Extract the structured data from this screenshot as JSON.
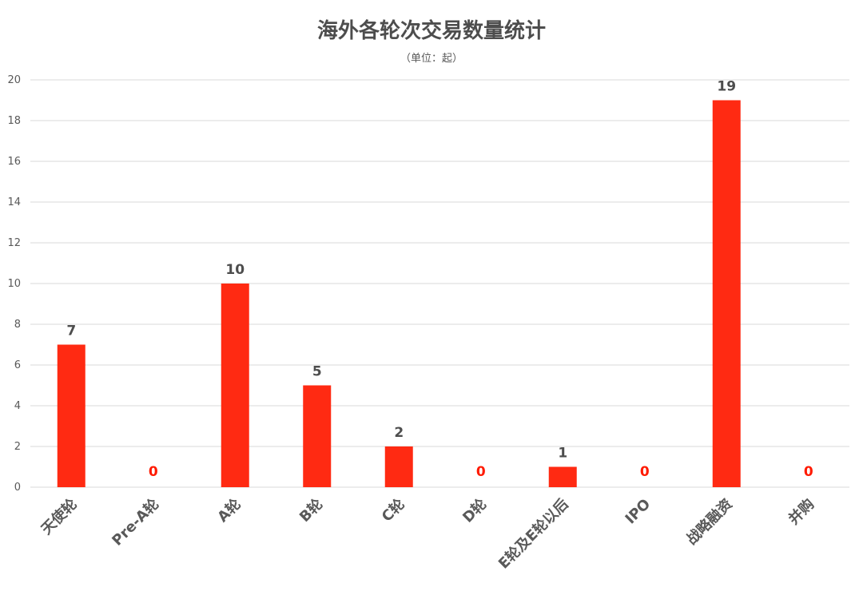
{
  "chart_data": {
    "type": "bar",
    "title": "海外各轮次交易数量统计",
    "subtitle": "（单位：起）",
    "categories": [
      "天使轮",
      "Pre-A轮",
      "A轮",
      "B轮",
      "C轮",
      "D轮",
      "E轮及E轮以后",
      "IPO",
      "战略融资",
      "并购"
    ],
    "values": [
      7,
      0,
      10,
      5,
      2,
      0,
      1,
      0,
      19,
      0
    ],
    "ylim": [
      0,
      20
    ],
    "yticks": [
      0,
      2,
      4,
      6,
      8,
      10,
      12,
      14,
      16,
      18,
      20
    ],
    "grid": true,
    "data_labels": true,
    "colors": {
      "bar": "#ff2a12",
      "zero_label": "#ff1a00",
      "label": "#4d4d4d",
      "grid": "#d9d9d9"
    }
  }
}
